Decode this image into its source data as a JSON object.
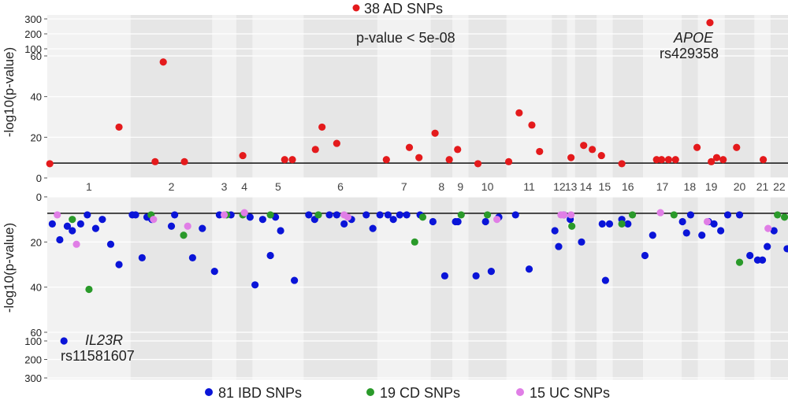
{
  "chart_data": [
    {
      "type": "scatter",
      "panel": "AD",
      "legend": "38 AD SNPs",
      "ylabel": "-log10(p-value)",
      "annotation": "p-value < 5e-08",
      "threshold": 7.3,
      "label_gene": "APOE",
      "label_snp": "rs429358",
      "yticks_lower": [
        "0",
        "20",
        "40",
        "60"
      ],
      "yticks_upper": [
        "100",
        "200",
        "300"
      ],
      "points": [
        {
          "c": "1",
          "x": 0.03,
          "y": 7
        },
        {
          "c": "1",
          "x": 0.86,
          "y": 25
        },
        {
          "c": "2",
          "x": 0.3,
          "y": 8
        },
        {
          "c": "2",
          "x": 0.4,
          "y": 57
        },
        {
          "c": "2",
          "x": 0.66,
          "y": 8
        },
        {
          "c": "4",
          "x": 0.4,
          "y": 11
        },
        {
          "c": "5",
          "x": 0.63,
          "y": 9
        },
        {
          "c": "5",
          "x": 0.78,
          "y": 9
        },
        {
          "c": "6",
          "x": 0.16,
          "y": 14
        },
        {
          "c": "6",
          "x": 0.25,
          "y": 25
        },
        {
          "c": "6",
          "x": 0.45,
          "y": 17
        },
        {
          "c": "7",
          "x": 0.17,
          "y": 9
        },
        {
          "c": "7",
          "x": 0.6,
          "y": 15
        },
        {
          "c": "7",
          "x": 0.78,
          "y": 10
        },
        {
          "c": "8",
          "x": 0.2,
          "y": 22
        },
        {
          "c": "8",
          "x": 0.86,
          "y": 9
        },
        {
          "c": "9",
          "x": 0.33,
          "y": 14
        },
        {
          "c": "10",
          "x": 0.25,
          "y": 7
        },
        {
          "c": "11",
          "x": 0.05,
          "y": 8
        },
        {
          "c": "11",
          "x": 0.28,
          "y": 32
        },
        {
          "c": "11",
          "x": 0.56,
          "y": 26
        },
        {
          "c": "11",
          "x": 0.73,
          "y": 13
        },
        {
          "c": "13",
          "x": 0.5,
          "y": 10
        },
        {
          "c": "14",
          "x": 0.4,
          "y": 16
        },
        {
          "c": "14",
          "x": 0.8,
          "y": 14
        },
        {
          "c": "15",
          "x": 0.3,
          "y": 11
        },
        {
          "c": "16",
          "x": 0.3,
          "y": 7
        },
        {
          "c": "17",
          "x": 0.35,
          "y": 9
        },
        {
          "c": "17",
          "x": 0.48,
          "y": 9
        },
        {
          "c": "17",
          "x": 0.66,
          "y": 9
        },
        {
          "c": "17",
          "x": 0.84,
          "y": 9
        },
        {
          "c": "18",
          "x": 0.95,
          "y": 15
        },
        {
          "c": "19",
          "x": 0.45,
          "y": 275
        },
        {
          "c": "19",
          "x": 0.5,
          "y": 8
        },
        {
          "c": "19",
          "x": 0.7,
          "y": 10
        },
        {
          "c": "19",
          "x": 0.94,
          "y": 9
        },
        {
          "c": "20",
          "x": 0.4,
          "y": 15
        },
        {
          "c": "21",
          "x": 0.55,
          "y": 9
        }
      ]
    },
    {
      "type": "scatter",
      "panel": "IBD",
      "legend": [
        {
          "label": "81 IBD SNPs",
          "color": "#0a14d8"
        },
        {
          "label": "19 CD SNPs",
          "color": "#2a9a2a"
        },
        {
          "label": "15 UC SNPs",
          "color": "#e07ee6"
        }
      ],
      "ylabel": "-log10(p-value)",
      "threshold": 7.3,
      "label_gene": "IL23R",
      "label_snp": "rs11581607",
      "yticks_lower": [
        "0",
        "20",
        "40",
        "60"
      ],
      "yticks_upper": [
        "100",
        "200",
        "300"
      ],
      "ibd": [
        {
          "c": "1",
          "x": 0.06,
          "y": 12
        },
        {
          "c": "1",
          "x": 0.15,
          "y": 19
        },
        {
          "c": "1",
          "x": 0.24,
          "y": 13
        },
        {
          "c": "1",
          "x": 0.3,
          "y": 15
        },
        {
          "c": "1",
          "x": 0.4,
          "y": 12
        },
        {
          "c": "1",
          "x": 0.48,
          "y": 8
        },
        {
          "c": "1",
          "x": 0.58,
          "y": 14
        },
        {
          "c": "1",
          "x": 0.66,
          "y": 10
        },
        {
          "c": "1",
          "x": 0.76,
          "y": 21
        },
        {
          "c": "1",
          "x": 0.86,
          "y": 30
        },
        {
          "c": "1",
          "x": 0.2,
          "y": 100
        },
        {
          "c": "2",
          "x": 0.02,
          "y": 8
        },
        {
          "c": "2",
          "x": 0.06,
          "y": 8
        },
        {
          "c": "2",
          "x": 0.14,
          "y": 27
        },
        {
          "c": "2",
          "x": 0.2,
          "y": 9
        },
        {
          "c": "2",
          "x": 0.26,
          "y": 10
        },
        {
          "c": "2",
          "x": 0.54,
          "y": 8
        },
        {
          "c": "2",
          "x": 0.5,
          "y": 13
        },
        {
          "c": "2",
          "x": 0.76,
          "y": 27
        },
        {
          "c": "2",
          "x": 0.88,
          "y": 14
        },
        {
          "c": "3",
          "x": 0.1,
          "y": 33
        },
        {
          "c": "3",
          "x": 0.3,
          "y": 8
        },
        {
          "c": "3",
          "x": 0.78,
          "y": 8
        },
        {
          "c": "4",
          "x": 0.85,
          "y": 9
        },
        {
          "c": "5",
          "x": 0.05,
          "y": 39
        },
        {
          "c": "5",
          "x": 0.2,
          "y": 10
        },
        {
          "c": "5",
          "x": 0.35,
          "y": 26
        },
        {
          "c": "5",
          "x": 0.45,
          "y": 9
        },
        {
          "c": "5",
          "x": 0.55,
          "y": 15
        },
        {
          "c": "5",
          "x": 0.82,
          "y": 37
        },
        {
          "c": "6",
          "x": 0.07,
          "y": 8
        },
        {
          "c": "6",
          "x": 0.15,
          "y": 10
        },
        {
          "c": "6",
          "x": 0.35,
          "y": 8
        },
        {
          "c": "6",
          "x": 0.45,
          "y": 8
        },
        {
          "c": "6",
          "x": 0.55,
          "y": 12
        },
        {
          "c": "6",
          "x": 0.65,
          "y": 10
        },
        {
          "c": "6",
          "x": 0.85,
          "y": 8
        },
        {
          "c": "6",
          "x": 0.94,
          "y": 14
        },
        {
          "c": "7",
          "x": 0.05,
          "y": 8
        },
        {
          "c": "7",
          "x": 0.2,
          "y": 8
        },
        {
          "c": "7",
          "x": 0.3,
          "y": 10
        },
        {
          "c": "7",
          "x": 0.42,
          "y": 8
        },
        {
          "c": "7",
          "x": 0.55,
          "y": 8
        },
        {
          "c": "7",
          "x": 0.8,
          "y": 8
        },
        {
          "c": "8",
          "x": 0.1,
          "y": 11
        },
        {
          "c": "8",
          "x": 0.65,
          "y": 35
        },
        {
          "c": "9",
          "x": 0.2,
          "y": 11
        },
        {
          "c": "9",
          "x": 0.35,
          "y": 11
        },
        {
          "c": "10",
          "x": 0.2,
          "y": 35
        },
        {
          "c": "10",
          "x": 0.45,
          "y": 11
        },
        {
          "c": "10",
          "x": 0.6,
          "y": 33
        },
        {
          "c": "10",
          "x": 0.8,
          "y": 9
        },
        {
          "c": "11",
          "x": 0.2,
          "y": 8
        },
        {
          "c": "11",
          "x": 0.5,
          "y": 32
        },
        {
          "c": "12",
          "x": 0.2,
          "y": 15
        },
        {
          "c": "12",
          "x": 0.45,
          "y": 22
        },
        {
          "c": "12",
          "x": 0.8,
          "y": 8
        },
        {
          "c": "13",
          "x": 0.4,
          "y": 10
        },
        {
          "c": "14",
          "x": 0.3,
          "y": 20
        },
        {
          "c": "15",
          "x": 0.35,
          "y": 12
        },
        {
          "c": "15",
          "x": 0.55,
          "y": 37
        },
        {
          "c": "15",
          "x": 0.8,
          "y": 12
        },
        {
          "c": "16",
          "x": 0.3,
          "y": 10
        },
        {
          "c": "16",
          "x": 0.5,
          "y": 12
        },
        {
          "c": "17",
          "x": 0.05,
          "y": 26
        },
        {
          "c": "17",
          "x": 0.25,
          "y": 17
        },
        {
          "c": "18",
          "x": 0.05,
          "y": 11
        },
        {
          "c": "18",
          "x": 0.3,
          "y": 16
        },
        {
          "c": "18",
          "x": 0.55,
          "y": 8
        },
        {
          "c": "19",
          "x": 0.15,
          "y": 17
        },
        {
          "c": "19",
          "x": 0.4,
          "y": 11
        },
        {
          "c": "19",
          "x": 0.6,
          "y": 12
        },
        {
          "c": "19",
          "x": 0.85,
          "y": 15
        },
        {
          "c": "20",
          "x": 0.1,
          "y": 8
        },
        {
          "c": "20",
          "x": 0.5,
          "y": 8
        },
        {
          "c": "20",
          "x": 0.85,
          "y": 26
        },
        {
          "c": "21",
          "x": 0.2,
          "y": 28
        },
        {
          "c": "21",
          "x": 0.5,
          "y": 28
        },
        {
          "c": "21",
          "x": 0.8,
          "y": 22
        },
        {
          "c": "22",
          "x": 0.2,
          "y": 15
        },
        {
          "c": "22",
          "x": 0.95,
          "y": 23
        }
      ],
      "cd": [
        {
          "c": "1",
          "x": 0.3,
          "y": 10
        },
        {
          "c": "1",
          "x": 0.5,
          "y": 41
        },
        {
          "c": "2",
          "x": 0.25,
          "y": 8
        },
        {
          "c": "2",
          "x": 0.65,
          "y": 17
        },
        {
          "c": "4",
          "x": 0.4,
          "y": 8
        },
        {
          "c": "5",
          "x": 0.35,
          "y": 8
        },
        {
          "c": "6",
          "x": 0.2,
          "y": 8
        },
        {
          "c": "7",
          "x": 0.7,
          "y": 20
        },
        {
          "c": "7",
          "x": 0.85,
          "y": 9
        },
        {
          "c": "10",
          "x": 0.5,
          "y": 8
        },
        {
          "c": "13",
          "x": 0.6,
          "y": 13
        },
        {
          "c": "16",
          "x": 0.3,
          "y": 12
        },
        {
          "c": "16",
          "x": 0.65,
          "y": 8
        },
        {
          "c": "20",
          "x": 0.5,
          "y": 29
        },
        {
          "c": "22",
          "x": 0.4,
          "y": 8
        },
        {
          "c": "22",
          "x": 0.8,
          "y": 9
        },
        {
          "c": "17",
          "x": 0.8,
          "y": 8
        },
        {
          "c": "9",
          "x": 0.55,
          "y": 8
        },
        {
          "c": "3",
          "x": 0.6,
          "y": 8
        }
      ],
      "uc": [
        {
          "c": "1",
          "x": 0.12,
          "y": 8
        },
        {
          "c": "1",
          "x": 0.35,
          "y": 21
        },
        {
          "c": "2",
          "x": 0.28,
          "y": 10
        },
        {
          "c": "2",
          "x": 0.7,
          "y": 13
        },
        {
          "c": "3",
          "x": 0.5,
          "y": 8
        },
        {
          "c": "4",
          "x": 0.5,
          "y": 7
        },
        {
          "c": "6",
          "x": 0.55,
          "y": 8
        },
        {
          "c": "6",
          "x": 0.6,
          "y": 9
        },
        {
          "c": "10",
          "x": 0.75,
          "y": 10
        },
        {
          "c": "12",
          "x": 0.6,
          "y": 8
        },
        {
          "c": "12",
          "x": 0.8,
          "y": 8
        },
        {
          "c": "13",
          "x": 0.5,
          "y": 8
        },
        {
          "c": "17",
          "x": 0.45,
          "y": 7
        },
        {
          "c": "19",
          "x": 0.35,
          "y": 11
        },
        {
          "c": "21",
          "x": 0.85,
          "y": 14
        }
      ]
    }
  ],
  "chromosomes": [
    {
      "label": "1",
      "w": 248
    },
    {
      "label": "2",
      "w": 242
    },
    {
      "label": "3",
      "w": 72
    },
    {
      "label": "4",
      "w": 48
    },
    {
      "label": "5",
      "w": 152
    },
    {
      "label": "6",
      "w": 219
    },
    {
      "label": "7",
      "w": 159
    },
    {
      "label": "8",
      "w": 64
    },
    {
      "label": "9",
      "w": 48
    },
    {
      "label": "10",
      "w": 113
    },
    {
      "label": "11",
      "w": 135
    },
    {
      "label": "12",
      "w": 45
    },
    {
      "label": "13",
      "w": 24
    },
    {
      "label": "14",
      "w": 64
    },
    {
      "label": "15",
      "w": 48
    },
    {
      "label": "16",
      "w": 90
    },
    {
      "label": "17",
      "w": 115
    },
    {
      "label": "18",
      "w": 48
    },
    {
      "label": "19",
      "w": 80
    },
    {
      "label": "20",
      "w": 88
    },
    {
      "label": "21",
      "w": 48
    },
    {
      "label": "22",
      "w": 52
    }
  ],
  "colors": {
    "ad": "#e41a1c",
    "ibd": "#0a14d8",
    "cd": "#2a9a2a",
    "uc": "#e07ee6",
    "band_light": "#f2f2f2",
    "band_dark": "#e6e6e6"
  }
}
